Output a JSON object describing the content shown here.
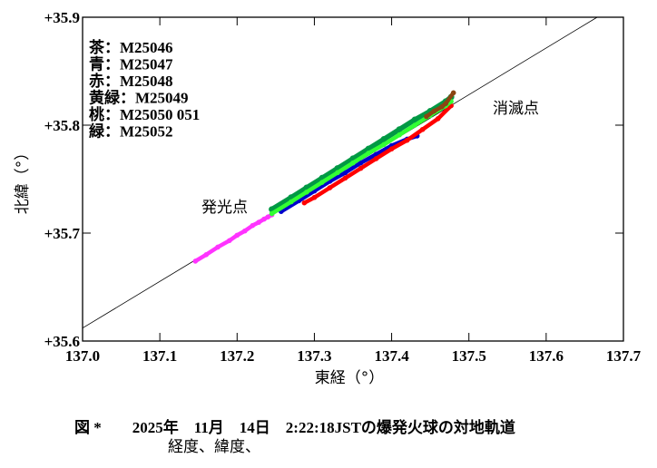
{
  "chart_data": {
    "type": "scatter",
    "xlabel": "東経（°）",
    "ylabel": "北緯（°）",
    "xlim": [
      137.0,
      137.7
    ],
    "ylim": [
      35.6,
      35.9
    ],
    "xticks": [
      "137.0",
      "137.1",
      "137.2",
      "137.3",
      "137.4",
      "137.5",
      "137.6",
      "137.7"
    ],
    "yticks": [
      "+35.6",
      "+35.7",
      "+35.8",
      "+35.9"
    ],
    "legend_placement": "top-left",
    "legend": [
      "茶：M25046",
      "青：M25047",
      "赤：M25048",
      "黄緑：M25049",
      "桃：M25050 051",
      "緑：M25052"
    ],
    "reference_line": {
      "x": [
        137.0,
        137.666
      ],
      "y": [
        35.612,
        35.9
      ],
      "color": "#000000"
    },
    "annotations": [
      {
        "text": "発光点",
        "x": 137.2,
        "y": 35.726
      },
      {
        "text": "消滅点",
        "x": 137.53,
        "y": 35.82
      }
    ],
    "series": [
      {
        "name": "M25050 051",
        "color": "#FF33FF",
        "x": [
          137.146,
          137.16,
          137.175,
          137.19,
          137.2,
          137.21,
          137.22,
          137.228,
          137.235,
          137.24,
          137.245
        ],
        "y": [
          35.674,
          35.68,
          35.687,
          35.693,
          35.698,
          35.702,
          35.707,
          35.71,
          35.713,
          35.715,
          35.717
        ]
      },
      {
        "name": "M25047",
        "color": "#0000CC",
        "x": [
          137.257,
          137.28,
          137.3,
          137.32,
          137.34,
          137.36,
          137.38,
          137.4,
          137.42,
          137.433
        ],
        "y": [
          35.72,
          35.73,
          35.739,
          35.748,
          35.756,
          35.765,
          35.773,
          35.781,
          35.787,
          35.79
        ]
      },
      {
        "name": "M25048",
        "color": "#FF0000",
        "x": [
          137.287,
          137.3,
          137.32,
          137.34,
          137.36,
          137.38,
          137.4,
          137.42,
          137.44,
          137.46,
          137.477
        ],
        "y": [
          35.728,
          35.733,
          35.742,
          35.751,
          35.76,
          35.769,
          35.778,
          35.786,
          35.796,
          35.806,
          35.818
        ]
      },
      {
        "name": "M25052",
        "color": "#009944",
        "x": [
          137.245,
          137.27,
          137.29,
          137.31,
          137.33,
          137.35,
          137.37,
          137.39,
          137.41,
          137.43,
          137.45,
          137.47,
          137.477
        ],
        "y": [
          35.722,
          35.733,
          35.742,
          35.751,
          35.76,
          35.769,
          35.778,
          35.787,
          35.796,
          35.805,
          35.813,
          35.822,
          35.826
        ]
      },
      {
        "name": "M25049",
        "color": "#33FF33",
        "x": [
          137.245,
          137.27,
          137.29,
          137.31,
          137.33,
          137.35,
          137.37,
          137.39,
          137.41,
          137.43,
          137.45,
          137.47,
          137.477
        ],
        "y": [
          35.718,
          35.729,
          35.738,
          35.747,
          35.756,
          35.765,
          35.774,
          35.782,
          35.791,
          35.8,
          35.809,
          35.818,
          35.822
        ]
      },
      {
        "name": "M25046",
        "color": "#8B4513",
        "x": [
          137.445,
          137.455,
          137.465,
          137.47,
          137.48
        ],
        "y": [
          35.808,
          35.813,
          35.817,
          35.82,
          35.83
        ]
      }
    ]
  },
  "caption": {
    "line1": "図 *        2025年　11月　14日　2:22:18JSTの爆発火球の対地軌道",
    "line2": "経度、緯度、"
  }
}
